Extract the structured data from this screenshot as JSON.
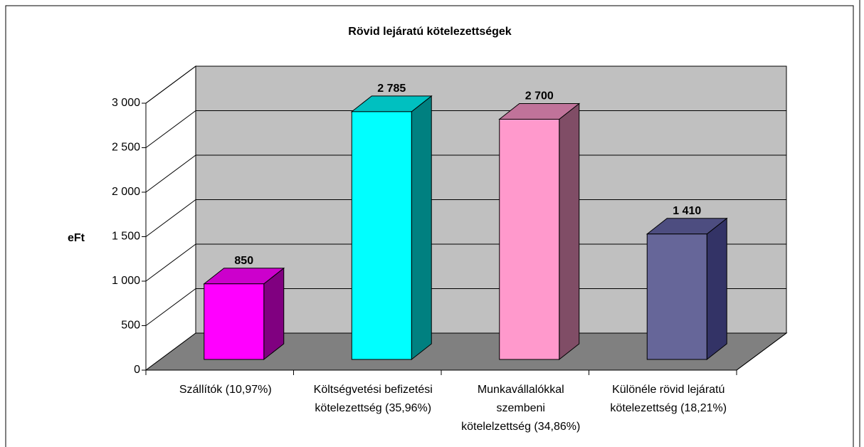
{
  "chart_data": {
    "type": "bar3d",
    "title": "Rövid lejáratú kötelezettségek",
    "y_label": "eFt",
    "categories": [
      "Szállítók (10,97%)",
      "Költségvetési befizetési\nkötelezettség (35,96%)",
      "Munkavállalókkal\nszembeni\nkötelelzettség (34,86%)",
      "Különéle rövid lejáratú\nkötelezettség (18,21%)"
    ],
    "values": [
      850,
      2785,
      2700,
      1410
    ],
    "value_labels": [
      "850",
      "2 785",
      "2 700",
      "1 410"
    ],
    "colors": [
      "#ff00ff",
      "#00ffff",
      "#ff99cc",
      "#666699"
    ],
    "side_colors": [
      "#800080",
      "#008080",
      "#804d66",
      "#333366"
    ],
    "top_colors": [
      "#cc00cc",
      "#00c0c0",
      "#c0739a",
      "#4d4d80"
    ],
    "ylim": [
      0,
      3000
    ],
    "yticks": [
      0,
      500,
      {
        "value": 1000,
        "label": "1 000"
      },
      {
        "value": 1500,
        "label": "1 500"
      },
      {
        "value": 2000,
        "label": "2 000"
      },
      {
        "value": 2500,
        "label": "2 500"
      },
      {
        "value": 3000,
        "label": "3 000"
      }
    ],
    "grid": true
  }
}
